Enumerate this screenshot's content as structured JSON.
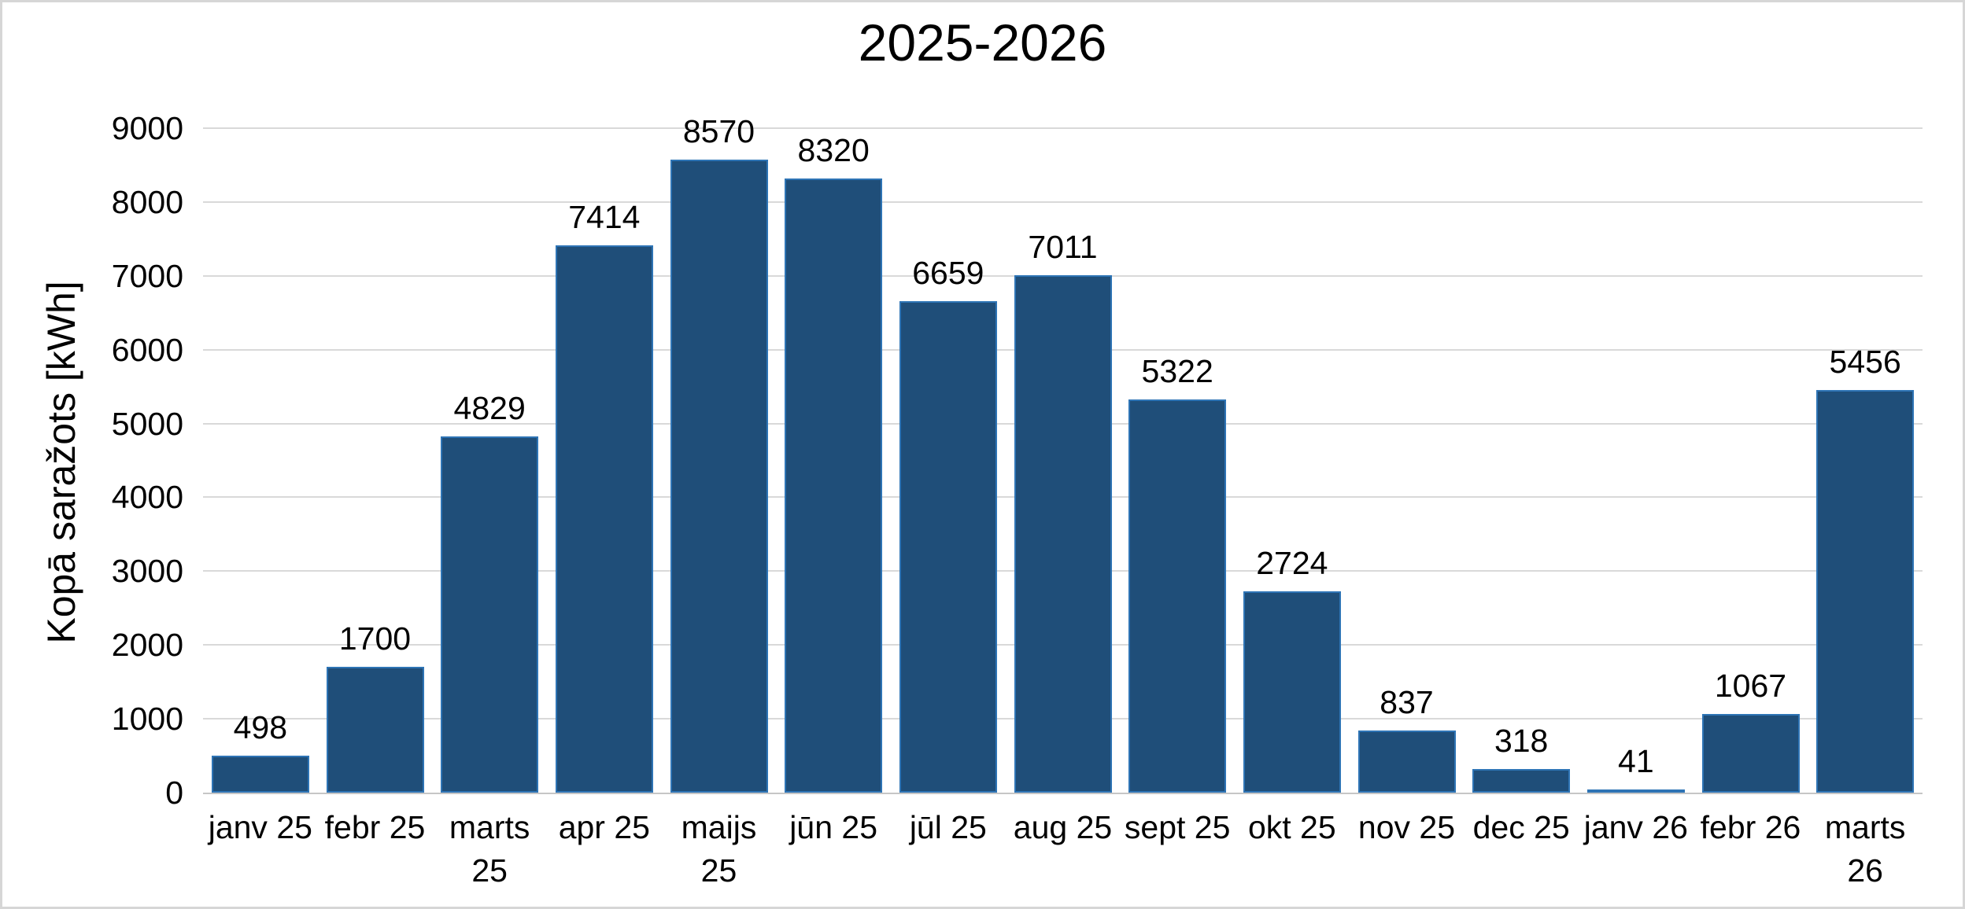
{
  "frame": {
    "background": "#ffffff",
    "border_color": "#d6d6d6"
  },
  "chart_data": {
    "type": "bar",
    "title": "2025-2026",
    "xlabel": "",
    "ylabel": "Kopā saražots [kWh]",
    "categories": [
      "janv 25",
      "febr 25",
      "marts 25",
      "apr 25",
      "maijs 25",
      "jūn 25",
      "jūl 25",
      "aug 25",
      "sept 25",
      "okt 25",
      "nov 25",
      "dec 25",
      "janv 26",
      "febr 26",
      "marts 26"
    ],
    "values": [
      498,
      1700,
      4829,
      7414,
      8570,
      8320,
      6659,
      7011,
      5322,
      2724,
      837,
      318,
      41,
      1067,
      5456
    ],
    "data_labels": [
      "498",
      "1700",
      "4829",
      "7414",
      "8570",
      "8320",
      "6659",
      "7011",
      "5322",
      "2724",
      "837",
      "318",
      "41",
      "1067",
      "5456"
    ],
    "ylim": [
      0,
      9000
    ],
    "yticks": [
      0,
      1000,
      2000,
      3000,
      4000,
      5000,
      6000,
      7000,
      8000,
      9000
    ],
    "grid": true,
    "legend": "none",
    "colors": {
      "bar_fill": "#1f4e79",
      "bar_border": "#2e74b5",
      "gridline": "#d9d9d9",
      "axis_line": "#c6c6c6",
      "text": "#000000"
    }
  }
}
